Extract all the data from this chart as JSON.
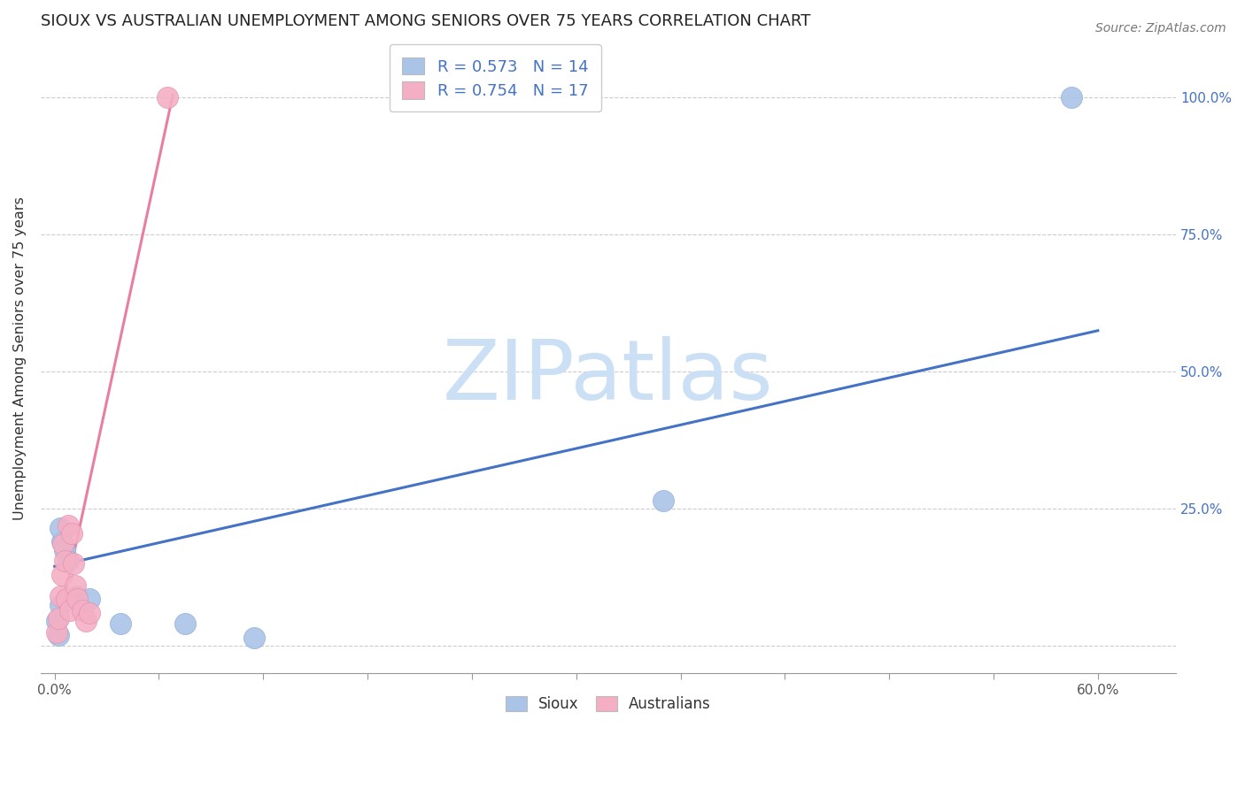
{
  "title": "SIOUX VS AUSTRALIAN UNEMPLOYMENT AMONG SENIORS OVER 75 YEARS CORRELATION CHART",
  "source": "Source: ZipAtlas.com",
  "xlabel_ticks": [
    "0.0%",
    "",
    "",
    "",
    "",
    "",
    "",
    "",
    "",
    "",
    "60.0%"
  ],
  "xlabel_vals": [
    0.0,
    0.06,
    0.12,
    0.18,
    0.24,
    0.3,
    0.36,
    0.42,
    0.48,
    0.54,
    0.6
  ],
  "ylabel": "Unemployment Among Seniors over 75 years",
  "ylabel_ticks": [
    "100.0%",
    "75.0%",
    "50.0%",
    "25.0%",
    ""
  ],
  "ylabel_vals": [
    1.0,
    0.75,
    0.5,
    0.25,
    0.0
  ],
  "xlim": [
    -0.008,
    0.645
  ],
  "ylim": [
    -0.05,
    1.1
  ],
  "sioux_R": 0.573,
  "sioux_N": 14,
  "aus_R": 0.754,
  "aus_N": 17,
  "sioux_color": "#aac4e8",
  "aus_color": "#f4afc4",
  "sioux_line_color": "#4472c4",
  "aus_line_color": "#e87fa0",
  "legend_text_color": "#4472c4",
  "watermark": "ZIPatlas",
  "watermark_color": "#cce0f5",
  "sioux_x": [
    0.001,
    0.002,
    0.003,
    0.004,
    0.006,
    0.008,
    0.013,
    0.02,
    0.038,
    0.075,
    0.115,
    0.35,
    0.585,
    0.003
  ],
  "sioux_y": [
    0.045,
    0.02,
    0.075,
    0.19,
    0.175,
    0.155,
    0.09,
    0.085,
    0.04,
    0.04,
    0.015,
    0.265,
    1.0,
    0.215
  ],
  "aus_x": [
    0.001,
    0.002,
    0.003,
    0.004,
    0.005,
    0.006,
    0.007,
    0.008,
    0.009,
    0.01,
    0.011,
    0.012,
    0.013,
    0.016,
    0.018,
    0.02,
    0.065
  ],
  "aus_y": [
    0.025,
    0.05,
    0.09,
    0.13,
    0.185,
    0.155,
    0.085,
    0.22,
    0.065,
    0.205,
    0.15,
    0.11,
    0.085,
    0.065,
    0.045,
    0.06,
    1.0
  ],
  "blue_line_x": [
    0.0,
    0.6
  ],
  "blue_line_y": [
    0.145,
    0.575
  ],
  "pink_line_x": [
    0.0,
    0.068
  ],
  "pink_line_y": [
    0.005,
    1.005
  ]
}
